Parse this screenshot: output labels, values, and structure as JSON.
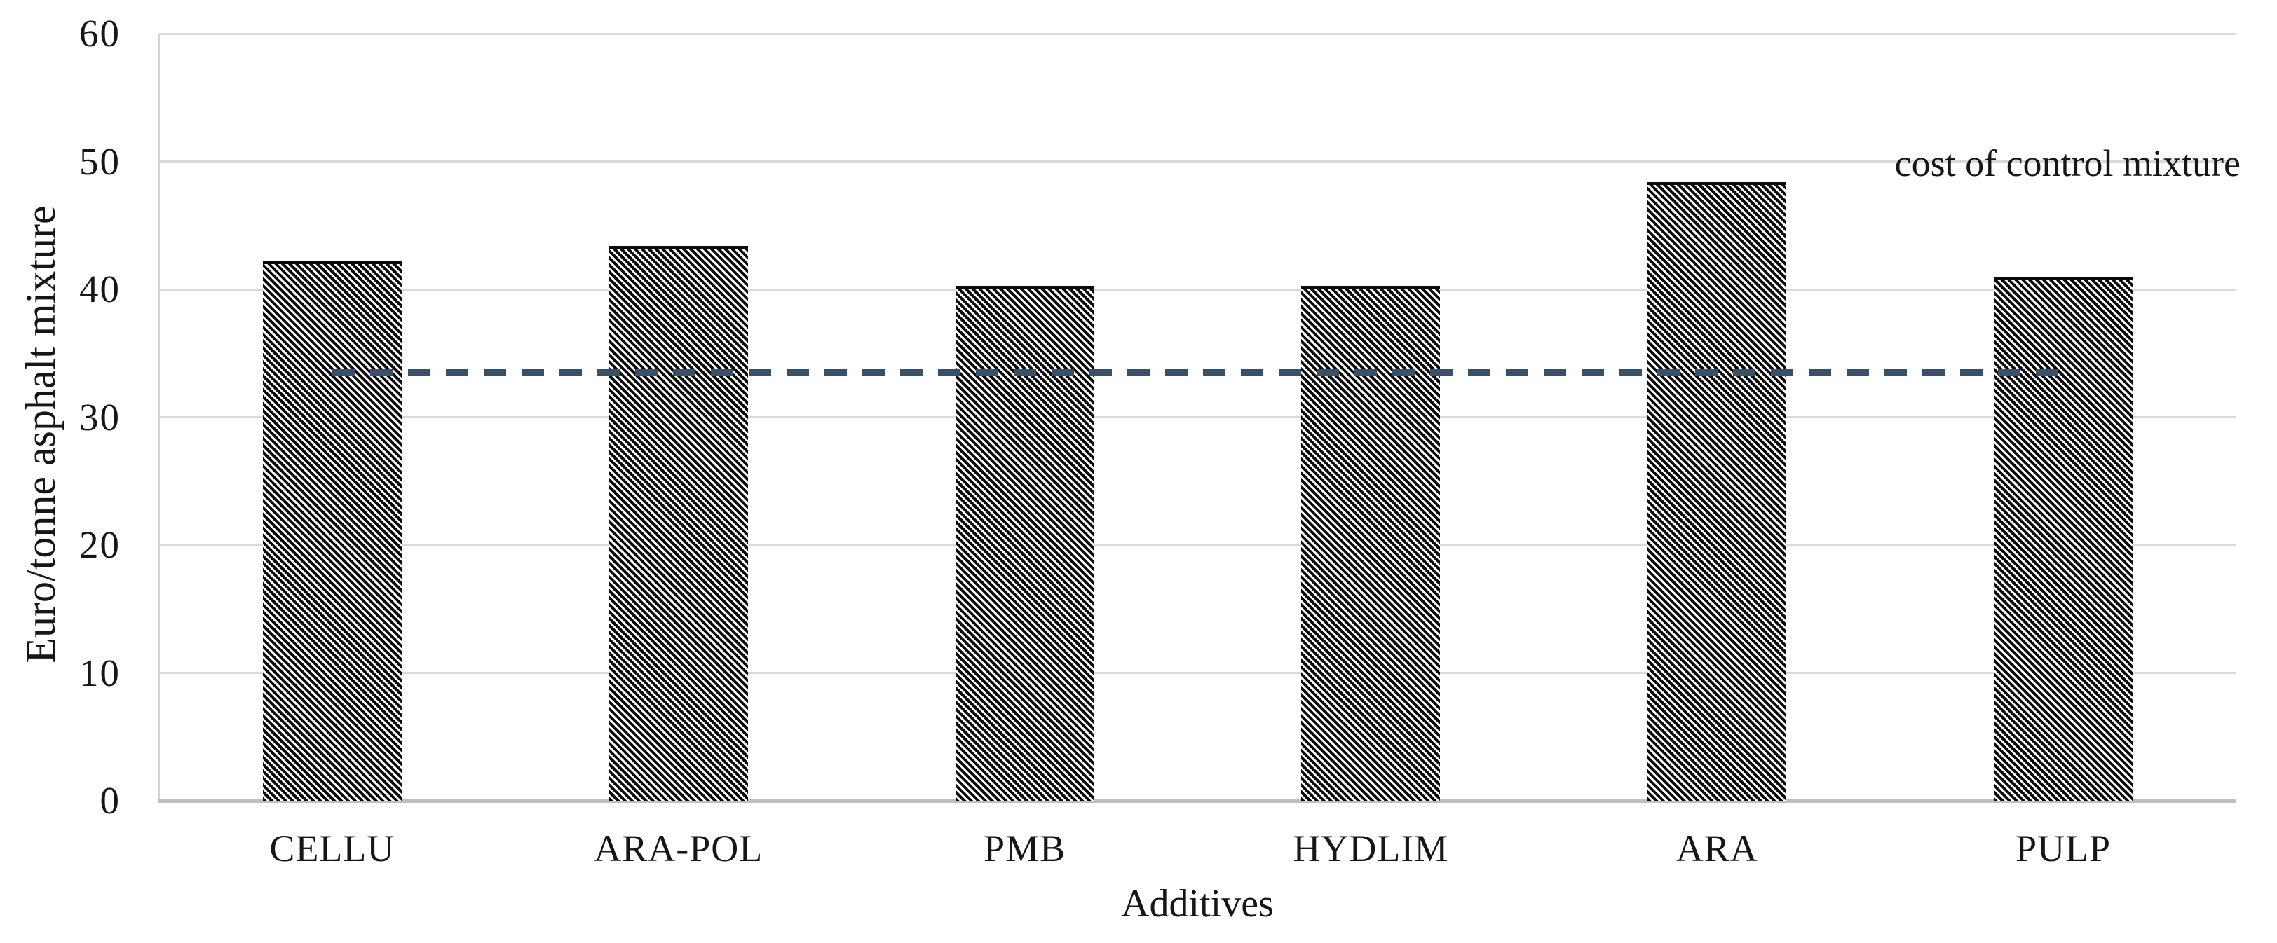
{
  "chart_data": {
    "type": "bar",
    "title": "",
    "categories": [
      "CELLU",
      "ARA-POL",
      "PMB",
      "HYDLIM",
      "ARA",
      "PULP"
    ],
    "values": [
      42.2,
      43.4,
      40.3,
      40.3,
      48.4,
      41.0
    ],
    "xlabel": "Additives",
    "ylabel": "Euro/tonne asphalt mixture",
    "ylim": [
      0,
      60
    ],
    "yticks": [
      0,
      10,
      20,
      30,
      40,
      50,
      60
    ],
    "grid": "horizontal",
    "legend_position": "none",
    "reference_line": {
      "label": "cost of control mixture",
      "value": 33.5,
      "style": "dashed",
      "color": "#39506a",
      "extent": "first-category-center-to-last-category-center"
    },
    "bar_style": {
      "fill": "hatch-downward-diagonal",
      "hatch_color": "#0a0a0a",
      "hatch_background": "#ffffff"
    },
    "gridline_color": "#d9d9d9",
    "axis_line_color": "#bfbfbf",
    "text_color": "#161616"
  }
}
